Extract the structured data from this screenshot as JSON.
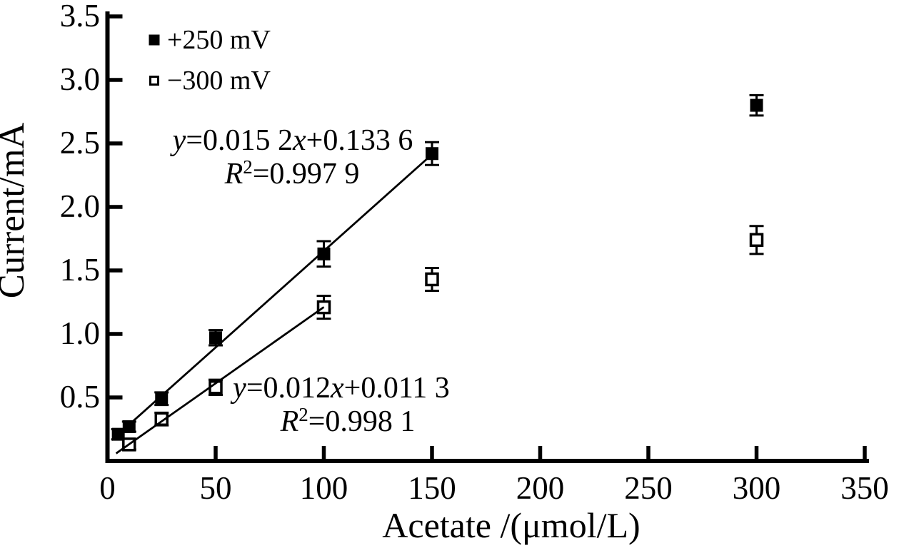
{
  "colors": {
    "background": "#ffffff",
    "ink": "#000000"
  },
  "chart_data": {
    "type": "scatter",
    "title": "",
    "xlabel": "Acetate /(μmol/L)",
    "ylabel": "Current/mA",
    "xlim": [
      0,
      350
    ],
    "ylim": [
      0,
      3.5
    ],
    "grid": false,
    "x_tick_values": [
      0,
      50,
      100,
      150,
      200,
      250,
      300,
      350
    ],
    "x_tick_labels": [
      "0",
      "50",
      "100",
      "150",
      "200",
      "250",
      "300",
      "350"
    ],
    "y_tick_values": [
      0.5,
      1.0,
      1.5,
      2.0,
      2.5,
      3.0,
      3.5
    ],
    "y_tick_labels": [
      "0.5",
      "1.0",
      "1.5",
      "2.0",
      "2.5",
      "3.0",
      "3.5"
    ],
    "legend": {
      "position": "top-left",
      "items": [
        {
          "label": "+250 mV",
          "marker": "filled-square"
        },
        {
          "label": "−300 mV",
          "marker": "open-square"
        }
      ]
    },
    "series": [
      {
        "name": "+250 mV",
        "marker": "filled-square",
        "color": "#000000",
        "points": [
          {
            "x": 5,
            "y": 0.21,
            "err": 0.04
          },
          {
            "x": 10,
            "y": 0.27,
            "err": 0.04
          },
          {
            "x": 25,
            "y": 0.49,
            "err": 0.05
          },
          {
            "x": 50,
            "y": 0.97,
            "err": 0.06
          },
          {
            "x": 100,
            "y": 1.63,
            "err": 0.1
          },
          {
            "x": 150,
            "y": 2.42,
            "err": 0.09
          },
          {
            "x": 300,
            "y": 2.8,
            "err": 0.08
          }
        ]
      },
      {
        "name": "−300 mV",
        "marker": "open-square",
        "color": "#000000",
        "points": [
          {
            "x": 10,
            "y": 0.13,
            "err": 0.04
          },
          {
            "x": 25,
            "y": 0.33,
            "err": 0.05
          },
          {
            "x": 50,
            "y": 0.58,
            "err": 0.06
          },
          {
            "x": 100,
            "y": 1.21,
            "err": 0.09
          },
          {
            "x": 150,
            "y": 1.43,
            "err": 0.09
          },
          {
            "x": 300,
            "y": 1.74,
            "err": 0.11
          }
        ]
      }
    ],
    "fit_lines": [
      {
        "series": "+250 mV",
        "slope": 0.0152,
        "intercept": 0.1336,
        "equation": "y=0.015 2x+0.133 6",
        "r_squared": "R²=0.997 9"
      },
      {
        "series": "−300 mV",
        "slope": 0.012,
        "intercept": 0.0113,
        "equation": "y=0.012x+0.011 3",
        "r_squared": "R²=0.998 1"
      }
    ],
    "annotations": [
      {
        "name": "fit-equation-top",
        "lines": [
          {
            "text": "y=0.015 2x+0.133 6",
            "segments": [
              {
                "t": "y",
                "style": "italic"
              },
              {
                "t": "=0.015 2",
                "style": "normal"
              },
              {
                "t": "x",
                "style": "italic"
              },
              {
                "t": "+0.133 6",
                "style": "normal"
              }
            ]
          },
          {
            "text": "R²=0.997 9",
            "segments": [
              {
                "t": "R",
                "style": "italic"
              },
              {
                "t": "2",
                "style": "sup"
              },
              {
                "t": "=0.997 9",
                "style": "normal"
              }
            ]
          }
        ]
      },
      {
        "name": "fit-equation-bottom",
        "lines": [
          {
            "text": "y=0.012x+0.011 3",
            "segments": [
              {
                "t": "y",
                "style": "italic"
              },
              {
                "t": "=0.012",
                "style": "normal"
              },
              {
                "t": "x",
                "style": "italic"
              },
              {
                "t": "+0.011 3",
                "style": "normal"
              }
            ]
          },
          {
            "text": "R²=0.998 1",
            "segments": [
              {
                "t": "R",
                "style": "italic"
              },
              {
                "t": "2",
                "style": "sup"
              },
              {
                "t": "=0.998 1",
                "style": "normal"
              }
            ]
          }
        ]
      }
    ]
  }
}
